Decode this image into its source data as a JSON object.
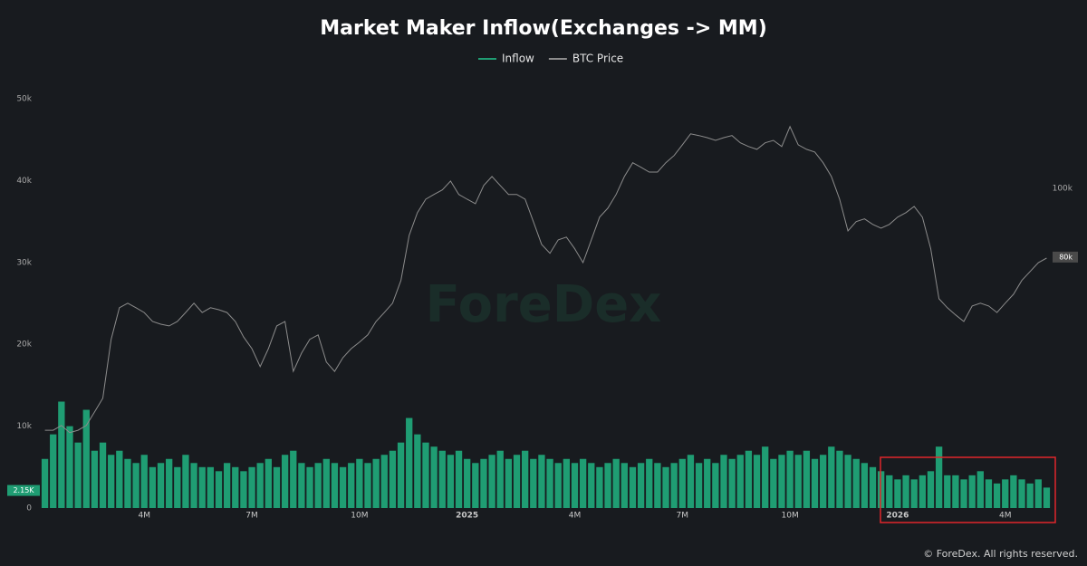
{
  "chart_data": {
    "type": "bar",
    "title": "Market Maker Inflow(Exchanges -> MM)",
    "watermark": "ForeDex",
    "footer": "© ForeDex. All rights reserved.",
    "categories": [
      null,
      null,
      null,
      null,
      null,
      null,
      null,
      null,
      null,
      null,
      null,
      null,
      "4M",
      null,
      null,
      null,
      null,
      null,
      null,
      null,
      null,
      null,
      null,
      null,
      null,
      "7M",
      null,
      null,
      null,
      null,
      null,
      null,
      null,
      null,
      null,
      null,
      null,
      null,
      "10M",
      null,
      null,
      null,
      null,
      null,
      null,
      null,
      null,
      null,
      null,
      null,
      null,
      "2025",
      null,
      null,
      null,
      null,
      null,
      null,
      null,
      null,
      null,
      null,
      null,
      null,
      "4M",
      null,
      null,
      null,
      null,
      null,
      null,
      null,
      null,
      null,
      null,
      null,
      null,
      "7M",
      null,
      null,
      null,
      null,
      null,
      null,
      null,
      null,
      null,
      null,
      null,
      null,
      "10M",
      null,
      null,
      null,
      null,
      null,
      null,
      null,
      null,
      null,
      null,
      null,
      null,
      "2026",
      null,
      null,
      null,
      null,
      null,
      null,
      null,
      null,
      null,
      null,
      null,
      null,
      "4M",
      null,
      null,
      null,
      null,
      null
    ],
    "series": [
      {
        "name": "Inflow",
        "color": "#1f9d73",
        "axis": "y",
        "values": [
          6000,
          9000,
          13000,
          10000,
          8000,
          12000,
          7000,
          8000,
          6500,
          7000,
          6000,
          5500,
          6500,
          5000,
          5500,
          6000,
          5000,
          6500,
          5500,
          5000,
          5000,
          4500,
          5500,
          5000,
          4500,
          5000,
          5500,
          6000,
          5000,
          6500,
          7000,
          5500,
          5000,
          5500,
          6000,
          5500,
          5000,
          5500,
          6000,
          5500,
          6000,
          6500,
          7000,
          8000,
          11000,
          9000,
          8000,
          7500,
          7000,
          6500,
          7000,
          6000,
          5500,
          6000,
          6500,
          7000,
          6000,
          6500,
          7000,
          6000,
          6500,
          6000,
          5500,
          6000,
          5500,
          6000,
          5500,
          5000,
          5500,
          6000,
          5500,
          5000,
          5500,
          6000,
          5500,
          5000,
          5500,
          6000,
          6500,
          5500,
          6000,
          5500,
          6500,
          6000,
          6500,
          7000,
          6500,
          7500,
          6000,
          6500,
          7000,
          6500,
          7000,
          6000,
          6500,
          7500,
          7000,
          6500,
          6000,
          5500,
          5000,
          4500,
          4000,
          3500,
          4000,
          3500,
          4000,
          4500,
          7500,
          4000,
          4000,
          3500,
          4000,
          4500,
          3500,
          3000,
          3500,
          4000,
          3500,
          3000,
          3500,
          2500
        ]
      },
      {
        "name": "BTC Price",
        "color": "#8c8c8c",
        "axis": "y2",
        "values": [
          29700,
          29700,
          31100,
          29000,
          29700,
          31100,
          35000,
          39000,
          56100,
          65300,
          66600,
          65300,
          63900,
          61300,
          60500,
          60000,
          61300,
          63900,
          66600,
          63900,
          65300,
          64700,
          63900,
          61300,
          56800,
          53400,
          48200,
          53400,
          60000,
          61300,
          46800,
          52100,
          56100,
          57400,
          49500,
          46800,
          50800,
          53400,
          55300,
          57400,
          61300,
          63900,
          66600,
          73200,
          86300,
          92900,
          96800,
          98200,
          99500,
          102100,
          98200,
          96800,
          95500,
          100800,
          103400,
          100800,
          98200,
          98200,
          96800,
          90300,
          83700,
          81100,
          85000,
          85800,
          82400,
          78400,
          85000,
          91600,
          94200,
          98200,
          103400,
          107400,
          106100,
          104700,
          104700,
          107400,
          109500,
          112600,
          115800,
          115300,
          114700,
          113900,
          114700,
          115300,
          113200,
          112100,
          111300,
          113200,
          113900,
          112100,
          117900,
          112600,
          111300,
          110500,
          107400,
          103400,
          96800,
          87600,
          90300,
          91100,
          89500,
          88400,
          89500,
          91600,
          92900,
          94700,
          91600,
          82400,
          67900,
          65300,
          63200,
          61300,
          65800,
          66600,
          65800,
          63900,
          66600,
          69200,
          73200,
          75800,
          78400,
          79700
        ]
      }
    ],
    "ylim": [
      0,
      50000
    ],
    "yticks": [
      0,
      {
        "value": 10000,
        "label": "10k"
      },
      {
        "value": 20000,
        "label": "20k"
      },
      {
        "value": 30000,
        "label": "30k"
      },
      {
        "value": 40000,
        "label": "40k"
      },
      {
        "value": 50000,
        "label": "50k"
      }
    ],
    "y2lim": [
      7100,
      126000
    ],
    "y2ticks": [
      {
        "value": 100000,
        "label": "100k"
      }
    ],
    "inflow_marker": {
      "value": 2150,
      "label": "2.15K"
    },
    "price_marker": {
      "value": 80000,
      "label": "80k"
    },
    "grid": false
  }
}
